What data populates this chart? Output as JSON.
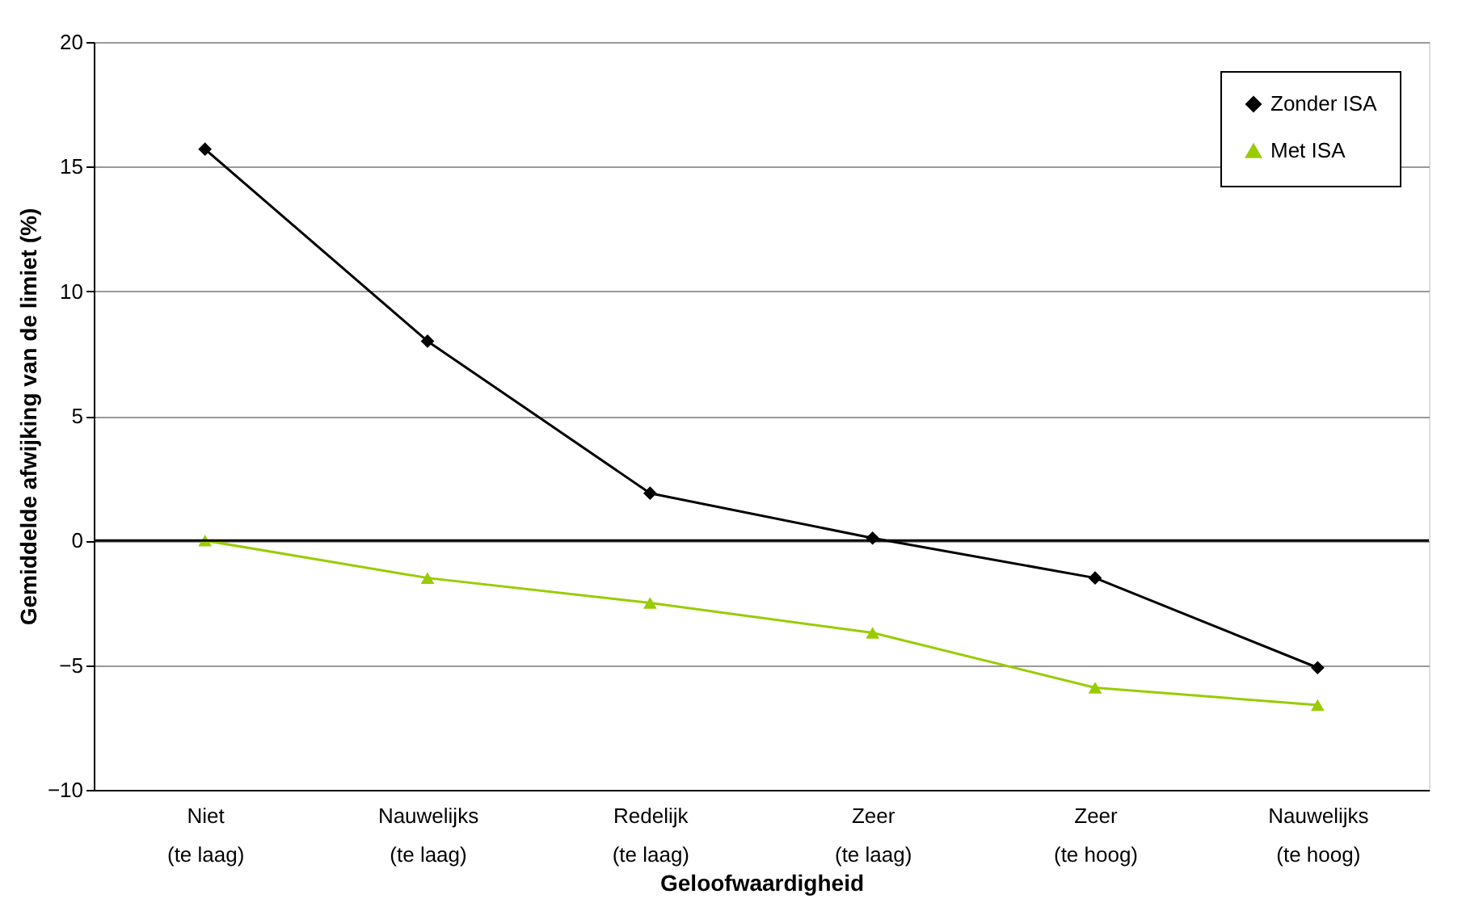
{
  "chart_data": {
    "type": "line",
    "xlabel": "Geloofwaardigheid",
    "ylabel": "Gemiddelde afwijking van de limiet (%)",
    "categories": [
      "Niet\n(te laag)",
      "Nauwelijks\n(te laag)",
      "Redelijk\n(te laag)",
      "Zeer\n(te laag)",
      "Zeer\n(te hoog)",
      "Nauwelijks\n(te hoog)"
    ],
    "series": [
      {
        "name": "Zonder ISA",
        "color": "#000000",
        "marker": "diamond",
        "values": [
          15.7,
          8.0,
          1.9,
          0.1,
          -1.5,
          -5.1
        ]
      },
      {
        "name": "Met ISA",
        "color": "#99cc00",
        "marker": "triangle",
        "values": [
          0.0,
          -1.5,
          -2.5,
          -3.7,
          -5.9,
          -6.6
        ]
      }
    ],
    "ylim": [
      -10,
      20
    ],
    "yticks": [
      -10,
      -5,
      0,
      5,
      10,
      15,
      20
    ],
    "grid": "y",
    "legend": "top right",
    "ref_lines": [
      {
        "axis": "y",
        "value": 0,
        "color": "#000000"
      }
    ]
  }
}
